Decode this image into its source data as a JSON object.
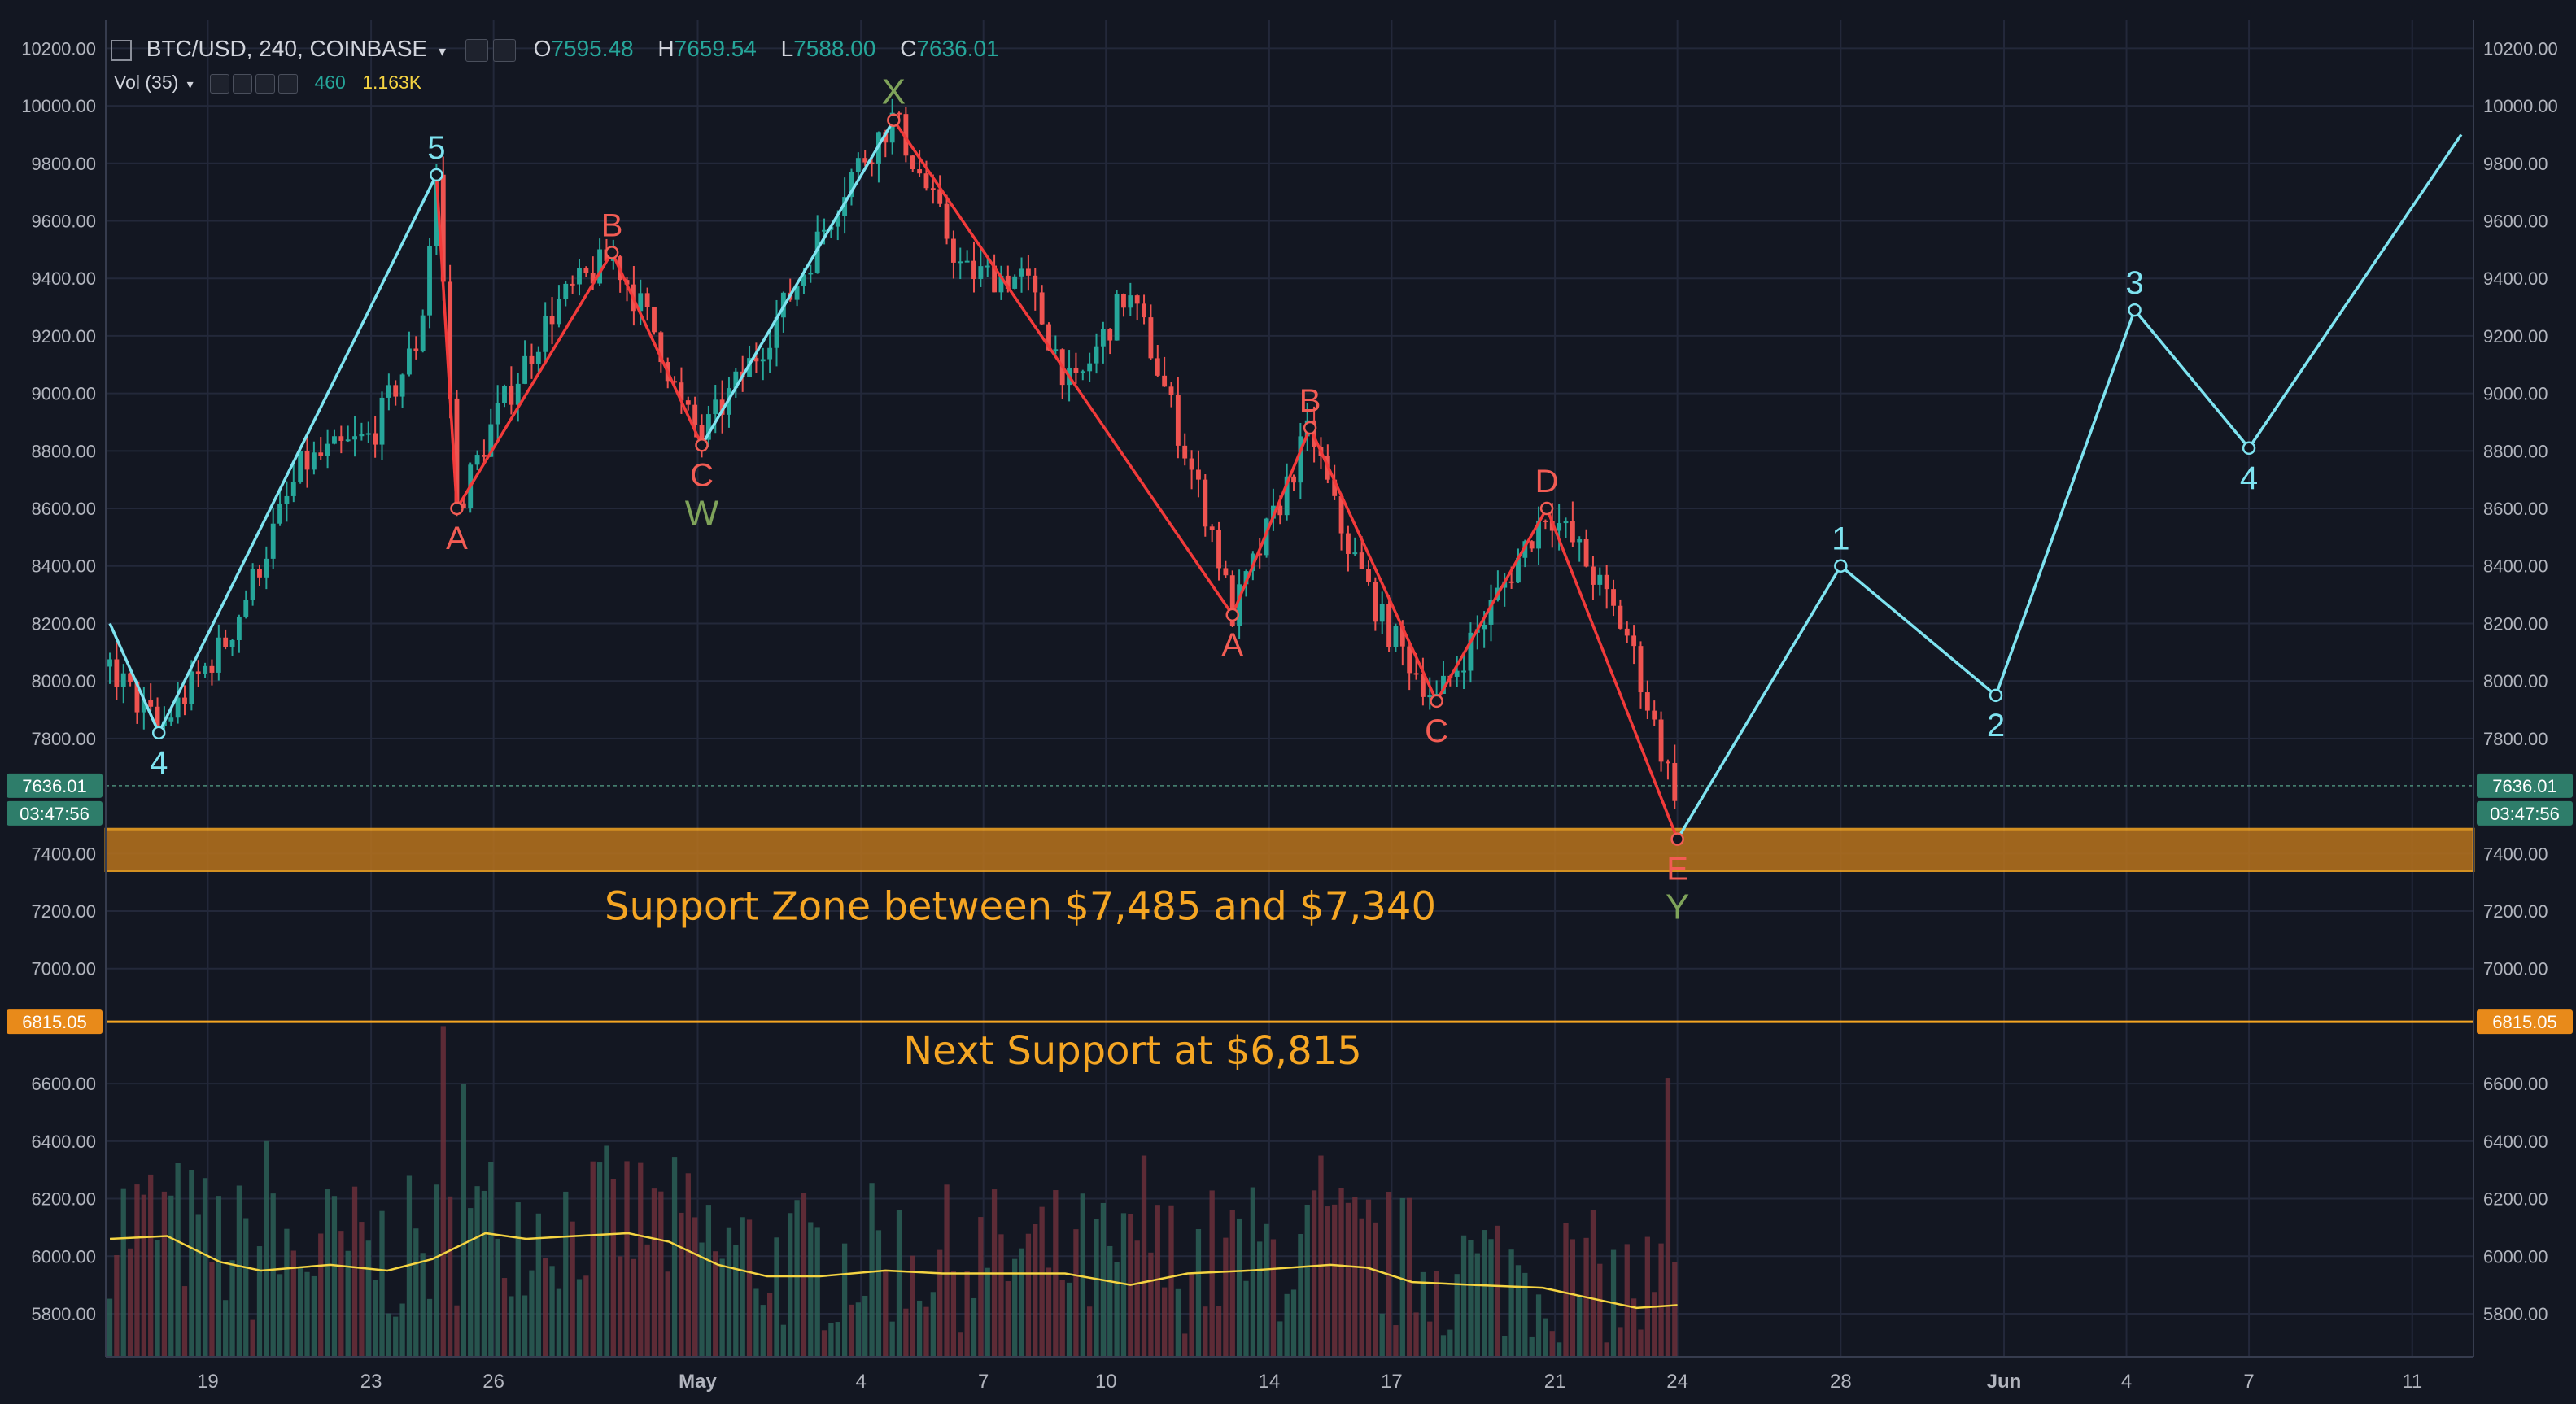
{
  "header": {
    "symbol": "BTC/USD, 240, COINBASE",
    "o_label": "O",
    "o_value": "7595.48",
    "h_label": "H",
    "h_value": "7659.54",
    "l_label": "L",
    "l_value": "7588.00",
    "c_label": "C",
    "c_value": "7636.01",
    "vol_label": "Vol (35)",
    "vol_value": "460",
    "vol_ma_value": "1.163K"
  },
  "colors": {
    "background": "#131722",
    "up": "#26a69a",
    "down": "#ef5350",
    "cyan": "#7ee3f0",
    "red_wave": "#f23a3a",
    "green_label": "#7fa35a",
    "orange": "#f5a623",
    "grid": "#23283a",
    "text": "#b2b5be"
  },
  "chart_data": {
    "type": "candlestick",
    "price_axis": {
      "ylim": [
        5650,
        10300
      ],
      "ticks": [
        "5800.00",
        "6000.00",
        "6200.00",
        "6400.00",
        "6600.00",
        "7000.00",
        "7200.00",
        "7400.00",
        "7800.00",
        "8000.00",
        "8200.00",
        "8400.00",
        "8600.00",
        "8800.00",
        "9000.00",
        "9200.00",
        "9400.00",
        "9600.00",
        "9800.00",
        "10000.00",
        "10200.00"
      ]
    },
    "price_labels": {
      "last": "7636.01",
      "countdown": "03:47:56",
      "next_support": "6815.05"
    },
    "x_axis": {
      "ticks": [
        {
          "label": "19",
          "day": 19
        },
        {
          "label": "23",
          "day": 23
        },
        {
          "label": "26",
          "day": 26
        },
        {
          "label": "May",
          "day": 31
        },
        {
          "label": "4",
          "day": 35
        },
        {
          "label": "7",
          "day": 38
        },
        {
          "label": "10",
          "day": 41
        },
        {
          "label": "14",
          "day": 45
        },
        {
          "label": "17",
          "day": 48
        },
        {
          "label": "21",
          "day": 52
        },
        {
          "label": "24",
          "day": 55
        },
        {
          "label": "28",
          "day": 59
        },
        {
          "label": "Jun",
          "day": 63
        },
        {
          "label": "4",
          "day": 66
        },
        {
          "label": "7",
          "day": 69
        },
        {
          "label": "11",
          "day": 73
        }
      ],
      "range_days": [
        16.5,
        74.5
      ],
      "last_candle_day": 55
    },
    "price_path": [
      [
        16.6,
        8050
      ],
      [
        17.8,
        7830
      ],
      [
        19.5,
        8150
      ],
      [
        21.3,
        8750
      ],
      [
        23.0,
        8850
      ],
      [
        24.2,
        9200
      ],
      [
        24.6,
        9760
      ],
      [
        25.1,
        8600
      ],
      [
        26.0,
        8900
      ],
      [
        27.5,
        9300
      ],
      [
        28.9,
        9480
      ],
      [
        30.0,
        9200
      ],
      [
        30.6,
        8950
      ],
      [
        31.1,
        8850
      ],
      [
        32.5,
        9150
      ],
      [
        33.5,
        9400
      ],
      [
        34.7,
        9750
      ],
      [
        35.8,
        9960
      ],
      [
        36.8,
        9650
      ],
      [
        37.5,
        9420
      ],
      [
        39.0,
        9400
      ],
      [
        40.2,
        9000
      ],
      [
        41.5,
        9350
      ],
      [
        42.0,
        9200
      ],
      [
        43.6,
        8520
      ],
      [
        44.1,
        8230
      ],
      [
        45.2,
        8600
      ],
      [
        46.0,
        8880
      ],
      [
        46.7,
        8550
      ],
      [
        47.8,
        8200
      ],
      [
        49.1,
        7930
      ],
      [
        50.4,
        8250
      ],
      [
        51.8,
        8600
      ],
      [
        52.6,
        8450
      ],
      [
        53.8,
        8150
      ],
      [
        54.9,
        7620
      ],
      [
        55.0,
        7636
      ]
    ],
    "volume_ma_path": [
      [
        16.6,
        6060
      ],
      [
        18.0,
        6070
      ],
      [
        19.3,
        5980
      ],
      [
        20.3,
        5950
      ],
      [
        22.0,
        5970
      ],
      [
        23.4,
        5950
      ],
      [
        24.5,
        5990
      ],
      [
        25.8,
        6080
      ],
      [
        26.8,
        6060
      ],
      [
        28.0,
        6070
      ],
      [
        29.3,
        6080
      ],
      [
        30.3,
        6050
      ],
      [
        31.5,
        5970
      ],
      [
        32.7,
        5930
      ],
      [
        34.0,
        5930
      ],
      [
        35.6,
        5950
      ],
      [
        37.0,
        5940
      ],
      [
        38.5,
        5940
      ],
      [
        40.0,
        5940
      ],
      [
        41.6,
        5900
      ],
      [
        43.0,
        5940
      ],
      [
        44.5,
        5950
      ],
      [
        46.5,
        5970
      ],
      [
        47.4,
        5960
      ],
      [
        48.5,
        5910
      ],
      [
        50.0,
        5900
      ],
      [
        51.7,
        5890
      ],
      [
        53.0,
        5850
      ],
      [
        54.0,
        5820
      ],
      [
        55.0,
        5830
      ]
    ],
    "volume_spikes": [
      [
        20.5,
        6400
      ],
      [
        24.8,
        6800
      ],
      [
        25.3,
        6600
      ],
      [
        42.0,
        6350
      ],
      [
        46.3,
        6350
      ],
      [
        54.8,
        6620
      ]
    ],
    "cyan_wave_lines": [
      [
        [
          16.6,
          8200
        ],
        [
          17.8,
          7820
        ],
        [
          24.6,
          9760
        ]
      ],
      [
        [
          31.1,
          8820
        ],
        [
          35.8,
          9950
        ]
      ],
      [
        [
          55.0,
          7450
        ],
        [
          59.0,
          8400
        ],
        [
          62.8,
          7950
        ],
        [
          66.2,
          9290
        ],
        [
          69.0,
          8810
        ],
        [
          74.2,
          9900
        ]
      ]
    ],
    "red_wave_lines": [
      [
        [
          24.6,
          9760
        ],
        [
          25.1,
          8600
        ],
        [
          28.9,
          9490
        ],
        [
          31.1,
          8820
        ]
      ],
      [
        [
          35.8,
          9950
        ],
        [
          44.1,
          8230
        ],
        [
          46.0,
          8880
        ],
        [
          49.1,
          7930
        ],
        [
          51.8,
          8600
        ],
        [
          55.0,
          7450
        ]
      ]
    ],
    "wave_points": [
      {
        "label": "4",
        "day": 17.8,
        "price": 7820,
        "color": "cyan",
        "pos": "below"
      },
      {
        "label": "5",
        "day": 24.6,
        "price": 9760,
        "color": "cyan",
        "pos": "above"
      },
      {
        "label": "A",
        "day": 25.1,
        "price": 8600,
        "color": "red",
        "pos": "below"
      },
      {
        "label": "B",
        "day": 28.9,
        "price": 9490,
        "color": "red",
        "pos": "above"
      },
      {
        "label": "C",
        "day": 31.1,
        "price": 8820,
        "color": "red",
        "pos": "below"
      },
      {
        "label": "W",
        "day": 31.1,
        "price": 8820,
        "color": "green",
        "pos": "below2"
      },
      {
        "label": "X",
        "day": 35.8,
        "price": 9950,
        "color": "green",
        "pos": "above"
      },
      {
        "label": "A",
        "day": 44.1,
        "price": 8230,
        "color": "red",
        "pos": "below"
      },
      {
        "label": "B",
        "day": 46.0,
        "price": 8880,
        "color": "red",
        "pos": "above"
      },
      {
        "label": "C",
        "day": 49.1,
        "price": 7930,
        "color": "red",
        "pos": "below"
      },
      {
        "label": "D",
        "day": 51.8,
        "price": 8600,
        "color": "red",
        "pos": "above"
      },
      {
        "label": "E",
        "day": 55.0,
        "price": 7450,
        "color": "red",
        "pos": "below"
      },
      {
        "label": "Y",
        "day": 55.0,
        "price": 7450,
        "color": "green",
        "pos": "below2"
      },
      {
        "label": "1",
        "day": 59.0,
        "price": 8400,
        "color": "cyan",
        "pos": "above"
      },
      {
        "label": "2",
        "day": 62.8,
        "price": 7950,
        "color": "cyan",
        "pos": "below"
      },
      {
        "label": "3",
        "day": 66.2,
        "price": 9290,
        "color": "cyan",
        "pos": "above"
      },
      {
        "label": "4",
        "day": 69.0,
        "price": 8810,
        "color": "cyan",
        "pos": "below"
      }
    ],
    "support_zone": {
      "high": 7485,
      "low": 7340,
      "text": "Support Zone between $7,485 and $7,340"
    },
    "next_support": {
      "price": 6815,
      "text": "Next Support at $6,815"
    }
  }
}
